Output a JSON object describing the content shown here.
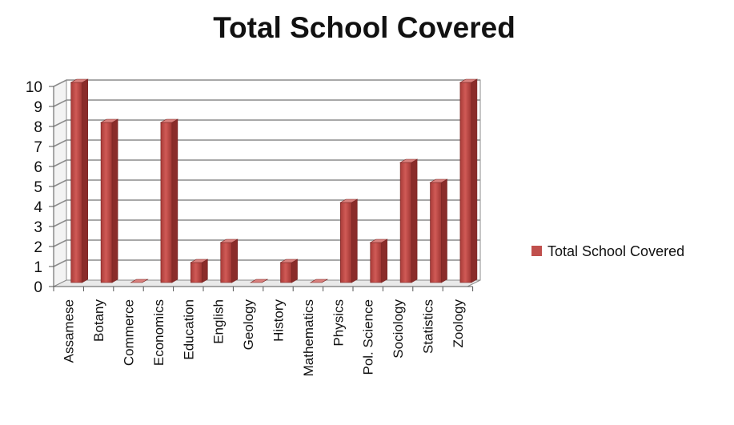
{
  "chart_data": {
    "type": "bar",
    "style": "3d-column",
    "title": "Total School Covered",
    "xlabel": "",
    "ylabel": "",
    "categories": [
      "Assamese",
      "Botany",
      "Commerce",
      "Economics",
      "Education",
      "English",
      "Geology",
      "History",
      "Mathematics",
      "Physics",
      "Pol. Science",
      "Sociology",
      "Statistics",
      "Zoology"
    ],
    "series": [
      {
        "name": "Total School Covered",
        "values": [
          10,
          8,
          0,
          8,
          1,
          2,
          0,
          1,
          0,
          4,
          2,
          6,
          5,
          10
        ],
        "color": "#c0504d"
      }
    ],
    "ylim": [
      0,
      10
    ],
    "yticks": [
      0,
      1,
      2,
      3,
      4,
      5,
      6,
      7,
      8,
      9,
      10
    ],
    "grid": true,
    "legend_position": "right"
  }
}
